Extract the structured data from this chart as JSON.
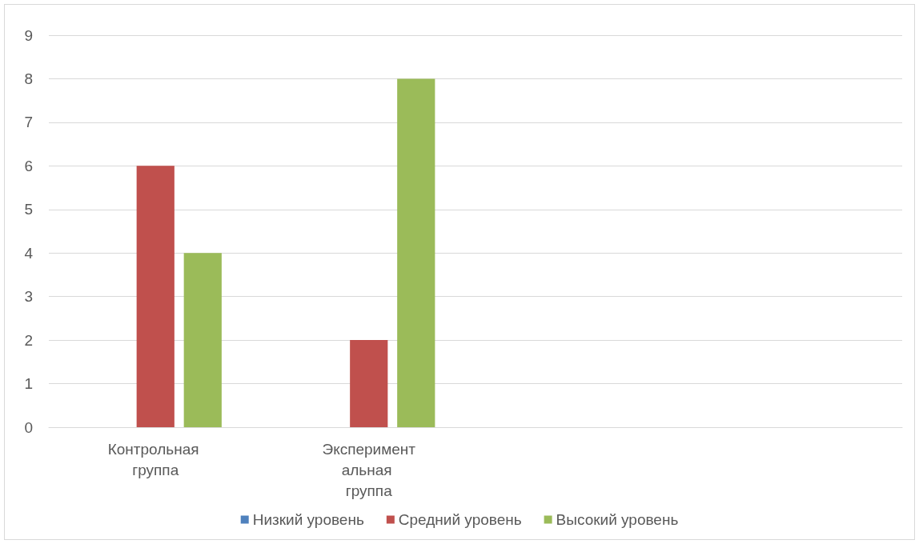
{
  "chart_data": {
    "type": "bar",
    "categories": [
      "Контрольная группа",
      "Экспериментальная группа",
      null,
      null
    ],
    "series": [
      {
        "name": "Низкий уровень",
        "color": "#4f81bd",
        "values": [
          0,
          0,
          null,
          null
        ]
      },
      {
        "name": "Средний уровень",
        "color": "#c0504d",
        "values": [
          6,
          2,
          null,
          null
        ]
      },
      {
        "name": "Высокий уровень",
        "color": "#9bbb59",
        "values": [
          4,
          8,
          null,
          null
        ]
      }
    ],
    "ylim": [
      0,
      9
    ],
    "yticks": [
      0,
      1,
      2,
      3,
      4,
      5,
      6,
      7,
      8,
      9
    ],
    "grid": "y",
    "legend": "bottom"
  }
}
